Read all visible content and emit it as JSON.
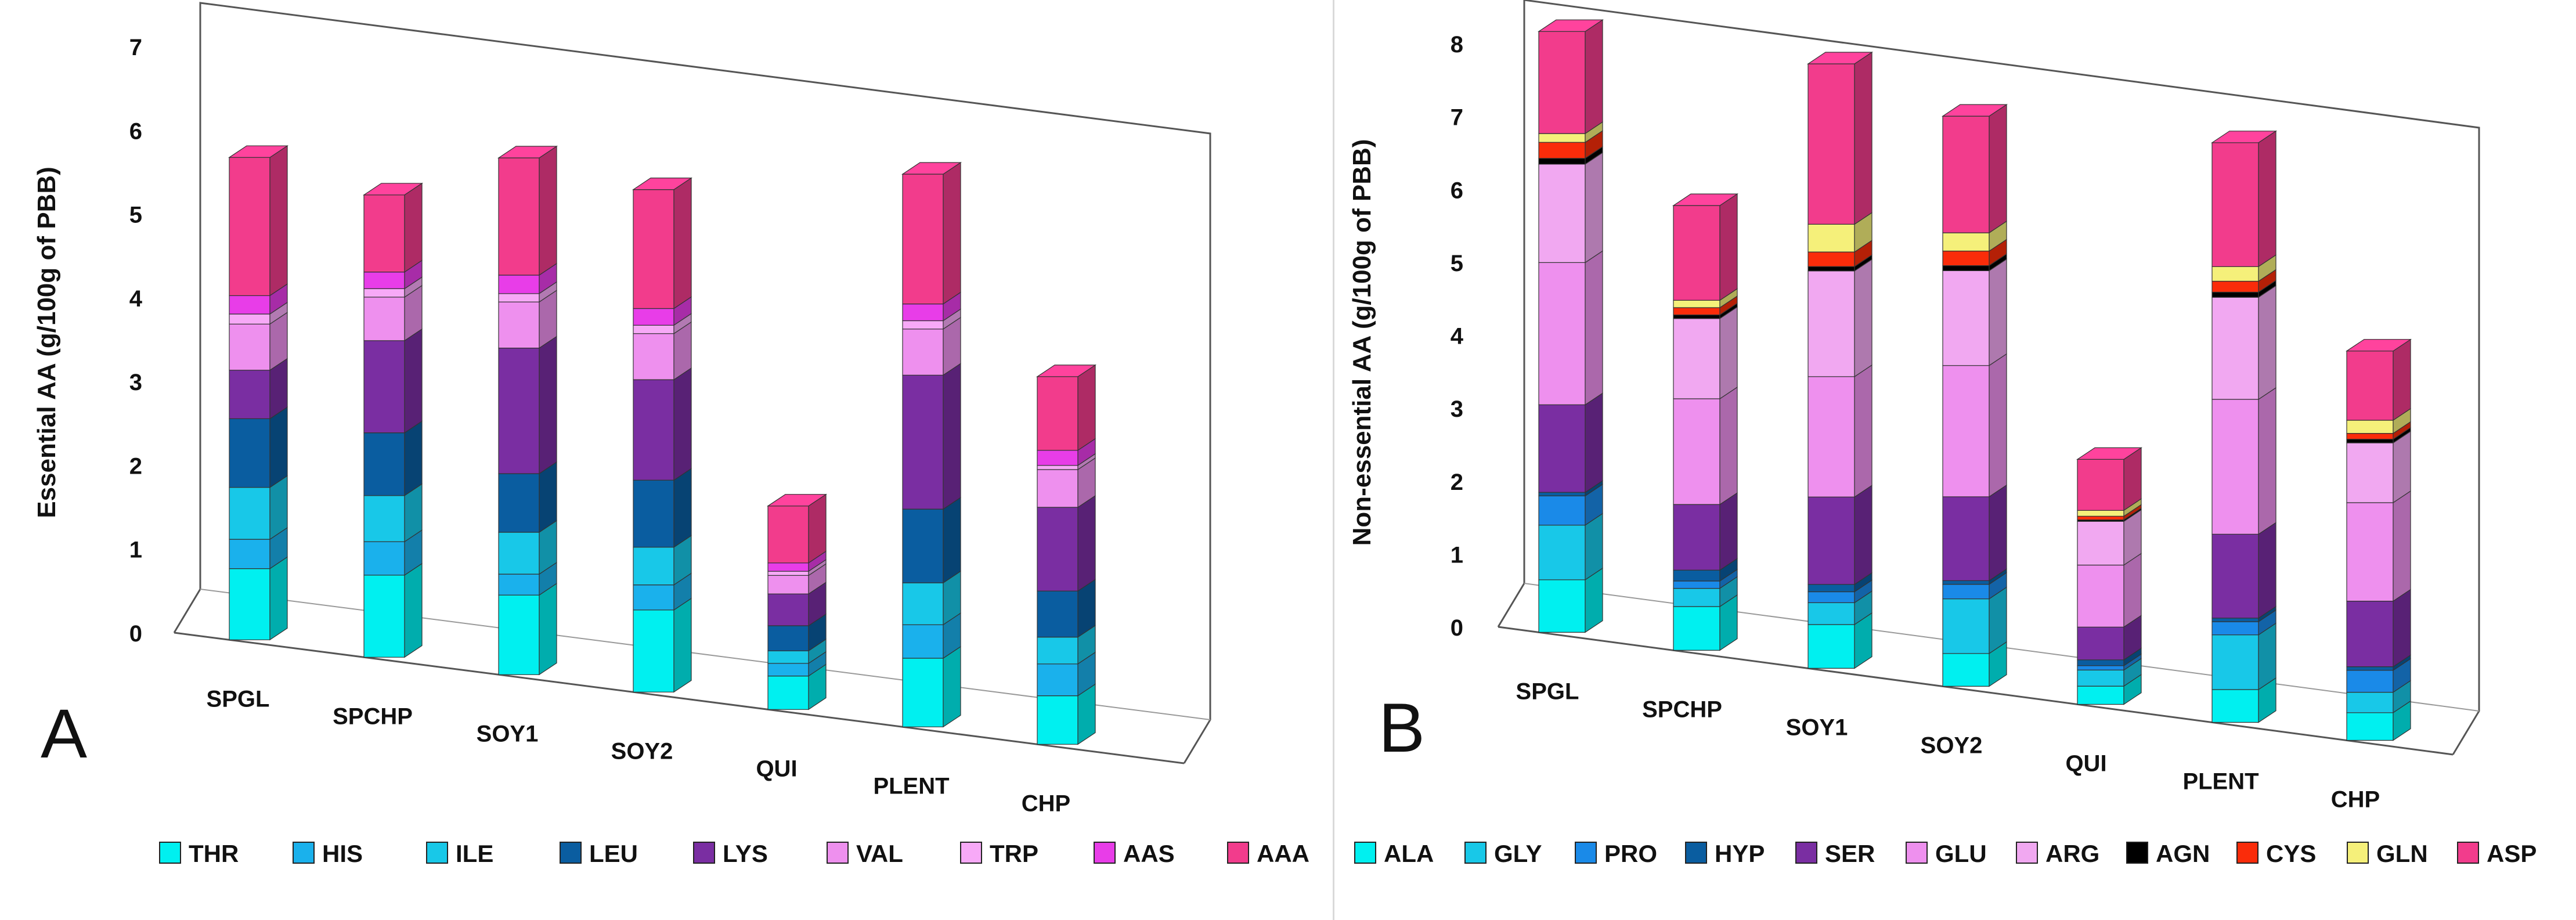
{
  "figure": {
    "panel_a_letter": "A",
    "panel_b_letter": "B"
  },
  "chart_data": [
    {
      "type": "bar",
      "stacked": true,
      "panel": "A",
      "title": "",
      "xlabel": "",
      "ylabel": "Essential AA (g/100g of PBB)",
      "ylim": [
        0,
        7
      ],
      "yticks": [
        "0",
        "1",
        "2",
        "3",
        "4",
        "5",
        "6",
        "7"
      ],
      "categories": [
        "SPGL",
        "SPCHP",
        "SOY1",
        "SOY2",
        "QUI",
        "PLENT",
        "CHP"
      ],
      "legend_position": "bottom",
      "series": [
        {
          "name": "THR",
          "color": "#00f0f0",
          "values": [
            0.85,
            0.98,
            0.95,
            0.98,
            0.4,
            0.82,
            0.58
          ]
        },
        {
          "name": "HIS",
          "color": "#1ab1ec",
          "values": [
            0.35,
            0.4,
            0.25,
            0.3,
            0.15,
            0.4,
            0.38
          ]
        },
        {
          "name": "ILE",
          "color": "#18c8e8",
          "values": [
            0.62,
            0.55,
            0.5,
            0.45,
            0.15,
            0.5,
            0.32
          ]
        },
        {
          "name": "LEU",
          "color": "#0a5da0",
          "values": [
            0.82,
            0.75,
            0.7,
            0.8,
            0.3,
            0.88,
            0.55
          ]
        },
        {
          "name": "LYS",
          "color": "#7a2ea2",
          "values": [
            0.58,
            1.1,
            1.5,
            1.2,
            0.38,
            1.6,
            1.0
          ]
        },
        {
          "name": "VAL",
          "color": "#ee90ee",
          "values": [
            0.55,
            0.52,
            0.55,
            0.55,
            0.22,
            0.55,
            0.45
          ]
        },
        {
          "name": "TRP",
          "color": "#f7a9f7",
          "values": [
            0.12,
            0.1,
            0.1,
            0.1,
            0.05,
            0.1,
            0.05
          ]
        },
        {
          "name": "AAS",
          "color": "#e83de8",
          "values": [
            0.22,
            0.2,
            0.22,
            0.2,
            0.1,
            0.2,
            0.18
          ]
        },
        {
          "name": "AAA",
          "color": "#f23c8c",
          "values": [
            1.65,
            0.92,
            1.4,
            1.42,
            0.68,
            1.55,
            0.88
          ]
        }
      ]
    },
    {
      "type": "bar",
      "stacked": true,
      "panel": "B",
      "title": "",
      "xlabel": "",
      "ylabel": "Non-essential AA (g/100g of PBB)",
      "ylim": [
        0,
        8
      ],
      "yticks": [
        "0",
        "1",
        "2",
        "3",
        "4",
        "5",
        "6",
        "7",
        "8"
      ],
      "categories": [
        "SPGL",
        "SPCHP",
        "SOY1",
        "SOY2",
        "QUI",
        "PLENT",
        "CHP"
      ],
      "legend_position": "bottom",
      "series": [
        {
          "name": "ALA",
          "color": "#00f0f0",
          "values": [
            0.72,
            0.6,
            0.6,
            0.45,
            0.25,
            0.45,
            0.38
          ]
        },
        {
          "name": "GLY",
          "color": "#18c8e8",
          "values": [
            0.75,
            0.25,
            0.3,
            0.75,
            0.22,
            0.75,
            0.28
          ]
        },
        {
          "name": "PRO",
          "color": "#1a8ae8",
          "values": [
            0.4,
            0.1,
            0.15,
            0.2,
            0.06,
            0.18,
            0.3
          ]
        },
        {
          "name": "HYP",
          "color": "#0a5da0",
          "values": [
            0.05,
            0.15,
            0.1,
            0.05,
            0.08,
            0.05,
            0.05
          ]
        },
        {
          "name": "SER",
          "color": "#7a2ea2",
          "values": [
            1.2,
            0.9,
            1.2,
            1.15,
            0.45,
            1.15,
            0.9
          ]
        },
        {
          "name": "GLU",
          "color": "#ee90ee",
          "values": [
            1.95,
            1.45,
            1.65,
            1.8,
            0.85,
            1.85,
            1.35
          ]
        },
        {
          "name": "ARG",
          "color": "#f1a8f1",
          "values": [
            1.35,
            1.1,
            1.45,
            1.3,
            0.6,
            1.4,
            0.82
          ]
        },
        {
          "name": "AGN",
          "color": "#000000",
          "values": [
            0.08,
            0.05,
            0.06,
            0.07,
            0.02,
            0.07,
            0.05
          ]
        },
        {
          "name": "CYS",
          "color": "#fa2c0a",
          "values": [
            0.22,
            0.1,
            0.2,
            0.2,
            0.05,
            0.15,
            0.08
          ]
        },
        {
          "name": "GLN",
          "color": "#f5f07a",
          "values": [
            0.12,
            0.1,
            0.38,
            0.25,
            0.08,
            0.2,
            0.18
          ]
        },
        {
          "name": "ASP",
          "color": "#f23c8c",
          "values": [
            1.4,
            1.3,
            2.2,
            1.6,
            0.7,
            1.7,
            0.95
          ]
        }
      ]
    }
  ]
}
